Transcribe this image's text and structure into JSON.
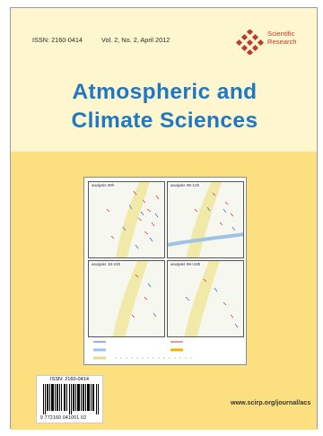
{
  "header": {
    "issn": "ISSN: 2160-0414",
    "volume": "Vol. 2, No. 2, April 2012",
    "publisher_line1": "Scientific",
    "publisher_line2": "Research"
  },
  "title": {
    "line1": "Atmospheric and",
    "line2": "Climate Sciences"
  },
  "figure": {
    "panels": [
      "analysis 00h",
      "analysis 06-12h",
      "analysis 18-24h",
      "analysis 06+18h"
    ]
  },
  "barcode": {
    "issn_label": "ISSN: 2160-0414",
    "digits": "9 772160 041001   02"
  },
  "footer": {
    "url": "www.scirp.org/journal/acs"
  },
  "colors": {
    "title_blue": "#1f78c1",
    "logo_red": "#c0392b",
    "cover_yellow": "#fce080"
  }
}
